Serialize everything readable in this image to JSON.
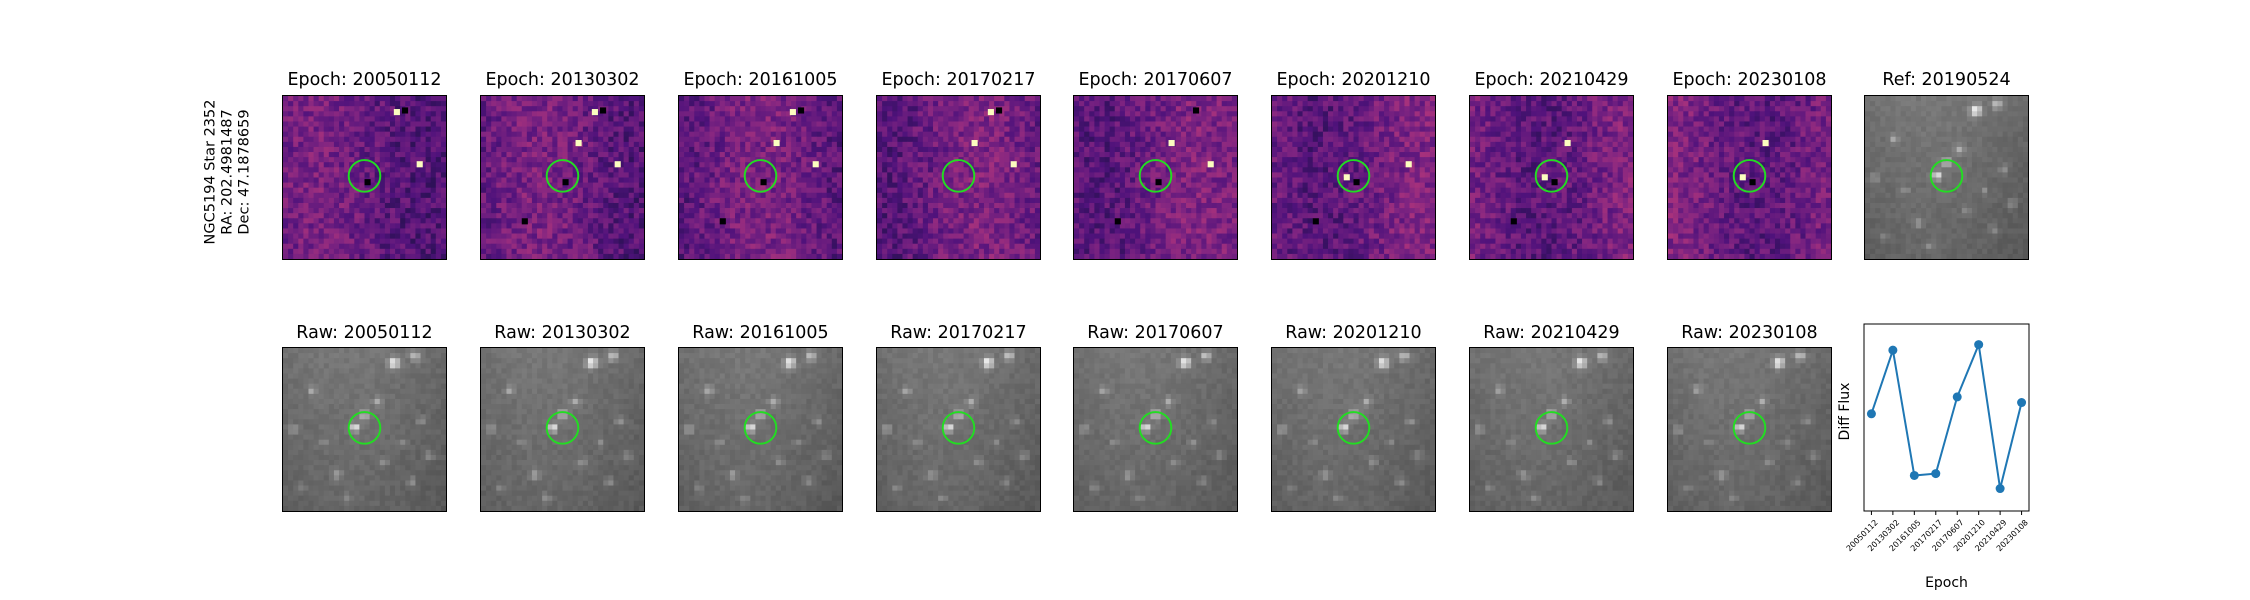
{
  "object": {
    "name": "NGC5194 Star 2352",
    "ra": "RA: 202.4981487",
    "dec": "Dec: 47.1878659"
  },
  "epoch_titles": [
    "Epoch: 20050112",
    "Epoch: 20130302",
    "Epoch: 20161005",
    "Epoch: 20170217",
    "Epoch: 20170607",
    "Epoch: 20201210",
    "Epoch: 20210429",
    "Epoch: 20230108"
  ],
  "reference_title": "Ref: 20190524",
  "raw_titles": [
    "Raw: 20050112",
    "Raw: 20130302",
    "Raw: 20161005",
    "Raw: 20170217",
    "Raw: 20170607",
    "Raw: 20201210",
    "Raw: 20210429",
    "Raw: 20230108"
  ],
  "colors": {
    "marker_circle": "#22dd22",
    "series_line": "#1f77b4"
  },
  "chart_data": {
    "type": "line",
    "x": [
      "20050112",
      "20130302",
      "20161005",
      "20170217",
      "20170607",
      "20201210",
      "20210429",
      "20230108"
    ],
    "y": [
      0.52,
      0.86,
      0.19,
      0.2,
      0.61,
      0.89,
      0.12,
      0.58
    ],
    "xlabel": "Epoch",
    "ylabel": "Diff Flux",
    "marker": "circle",
    "yticks": "none"
  }
}
